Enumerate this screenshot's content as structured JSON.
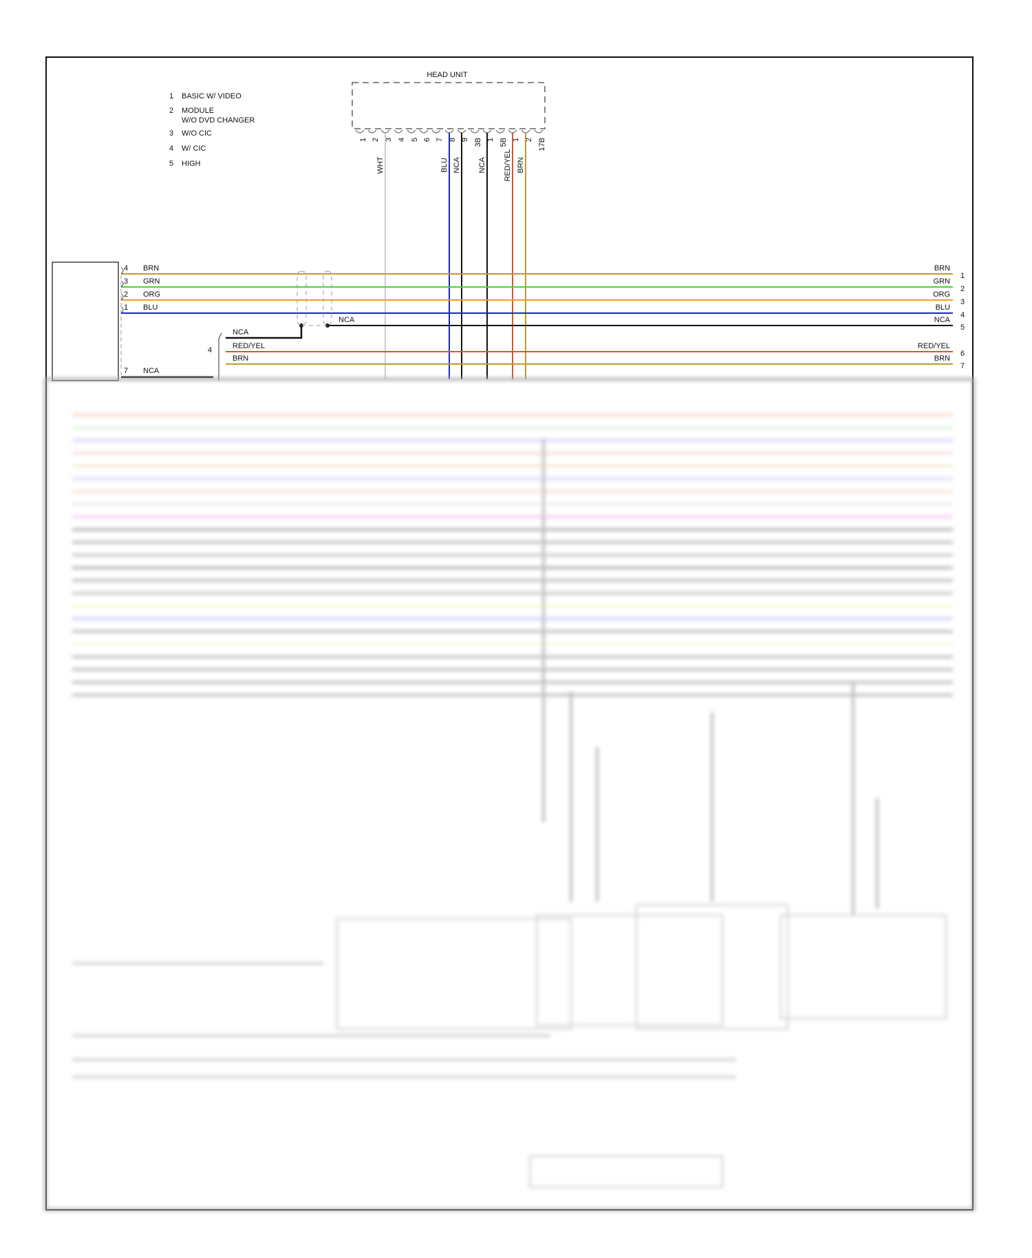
{
  "legend": [
    {
      "num": "1",
      "lines": [
        "BASIC W/ VIDEO"
      ]
    },
    {
      "num": "2",
      "lines": [
        "MODULE",
        "W/O DVD CHANGER"
      ]
    },
    {
      "num": "3",
      "lines": [
        "W/O CIC"
      ]
    },
    {
      "num": "4",
      "lines": [
        "W/ CIC"
      ]
    },
    {
      "num": "5",
      "lines": [
        "HIGH"
      ]
    }
  ],
  "head_unit": {
    "title": "HEAD UNIT",
    "pins": [
      "1",
      "2",
      "3",
      "4",
      "5",
      "6",
      "7",
      "8",
      "9",
      "3B",
      "1",
      "5B",
      "1",
      "2",
      "17B"
    ],
    "wires": [
      {
        "pin_index": 2,
        "label": "WHT",
        "color": "#cccccc"
      },
      {
        "pin_index": 7,
        "label": "BLU",
        "color": "#1428c8"
      },
      {
        "pin_index": 8,
        "label": "NCA",
        "color": "#111111"
      },
      {
        "pin_index": 10,
        "label": "NCA",
        "color": "#111111"
      },
      {
        "pin_index": 12,
        "label": "RED/YEL",
        "color": "#e0522a"
      },
      {
        "pin_index": 13,
        "label": "BRN",
        "color": "#c09a30"
      }
    ]
  },
  "bus_wires": [
    {
      "left_pin": "4",
      "left_label": "BRN",
      "right_label": "BRN",
      "right_pin": "1",
      "color": "#c09a30"
    },
    {
      "left_pin": "3",
      "left_label": "GRN",
      "right_label": "GRN",
      "right_pin": "2",
      "color": "#44d62c"
    },
    {
      "left_pin": "2",
      "left_label": "ORG",
      "right_label": "ORG",
      "right_pin": "3",
      "color": "#f39a2a"
    },
    {
      "left_pin": "1",
      "left_label": "BLU",
      "right_label": "BLU",
      "right_pin": "4",
      "color": "#1428c8"
    },
    {
      "left_pin": "",
      "left_label": "NCA",
      "right_label": "NCA",
      "right_pin": "5",
      "color": "#111111"
    },
    {
      "left_pin": "",
      "left_label": "RED/YEL",
      "right_label": "RED/YEL",
      "right_pin": "6",
      "color": "#e0522a"
    },
    {
      "left_pin": "",
      "left_label": "BRN",
      "right_label": "BRN",
      "right_pin": "7",
      "color": "#c09a30"
    }
  ],
  "connector4": {
    "label": "4",
    "wire_labels": [
      "NCA",
      "RED/YEL",
      "BRN"
    ]
  },
  "left_module": {
    "pin7_label": "7",
    "pin7_wire": "NCA"
  }
}
